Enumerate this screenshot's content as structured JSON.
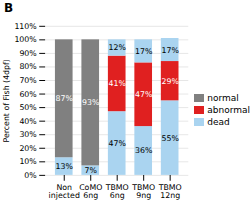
{
  "chart_data": {
    "type": "bar",
    "stacked": true,
    "title": "B",
    "ylabel": "Percent of Fish (4dpf)",
    "categories": [
      "Non\ninjected",
      "CoMO\n6ng",
      "TBMO\n6ng",
      "TBMO\n9ng",
      "TBMO\n12ng"
    ],
    "series": [
      {
        "name": "dead",
        "color": "#aad4f0",
        "values": [
          13,
          7,
          47,
          36,
          55
        ],
        "value_labels": [
          "13%",
          "7%",
          "47%",
          "36%",
          "55%"
        ]
      },
      {
        "name": "abnormal",
        "color": "#e02020",
        "values": [
          0,
          0,
          41,
          47,
          29
        ],
        "value_labels": [
          null,
          null,
          "41%",
          "47%",
          "29%"
        ]
      },
      {
        "name": "normal",
        "color": "#808080",
        "values": [
          87,
          93,
          0,
          0,
          0
        ],
        "value_labels": [
          "87%",
          "93%",
          null,
          null,
          null
        ]
      },
      {
        "name": "dead",
        "color": "#aad4f0",
        "values": [
          0,
          0,
          12,
          17,
          17
        ],
        "value_labels": [
          null,
          null,
          "12%",
          "17%",
          "17%"
        ]
      }
    ],
    "ylim": [
      0,
      110
    ],
    "yticks": [
      {
        "value": 0,
        "label": "0%"
      },
      {
        "value": 10,
        "label": "10%"
      },
      {
        "value": 20,
        "label": "20%"
      },
      {
        "value": 30,
        "label": "30%"
      },
      {
        "value": 40,
        "label": "40%"
      },
      {
        "value": 50,
        "label": "50%"
      },
      {
        "value": 60,
        "label": "60%"
      },
      {
        "value": 70,
        "label": "70%"
      },
      {
        "value": 80,
        "label": "80%"
      },
      {
        "value": 90,
        "label": "90%"
      },
      {
        "value": 100,
        "label": "100%"
      },
      {
        "value": 110,
        "label": "110%"
      }
    ],
    "grid": true,
    "legend": "right",
    "data_labels": true
  }
}
